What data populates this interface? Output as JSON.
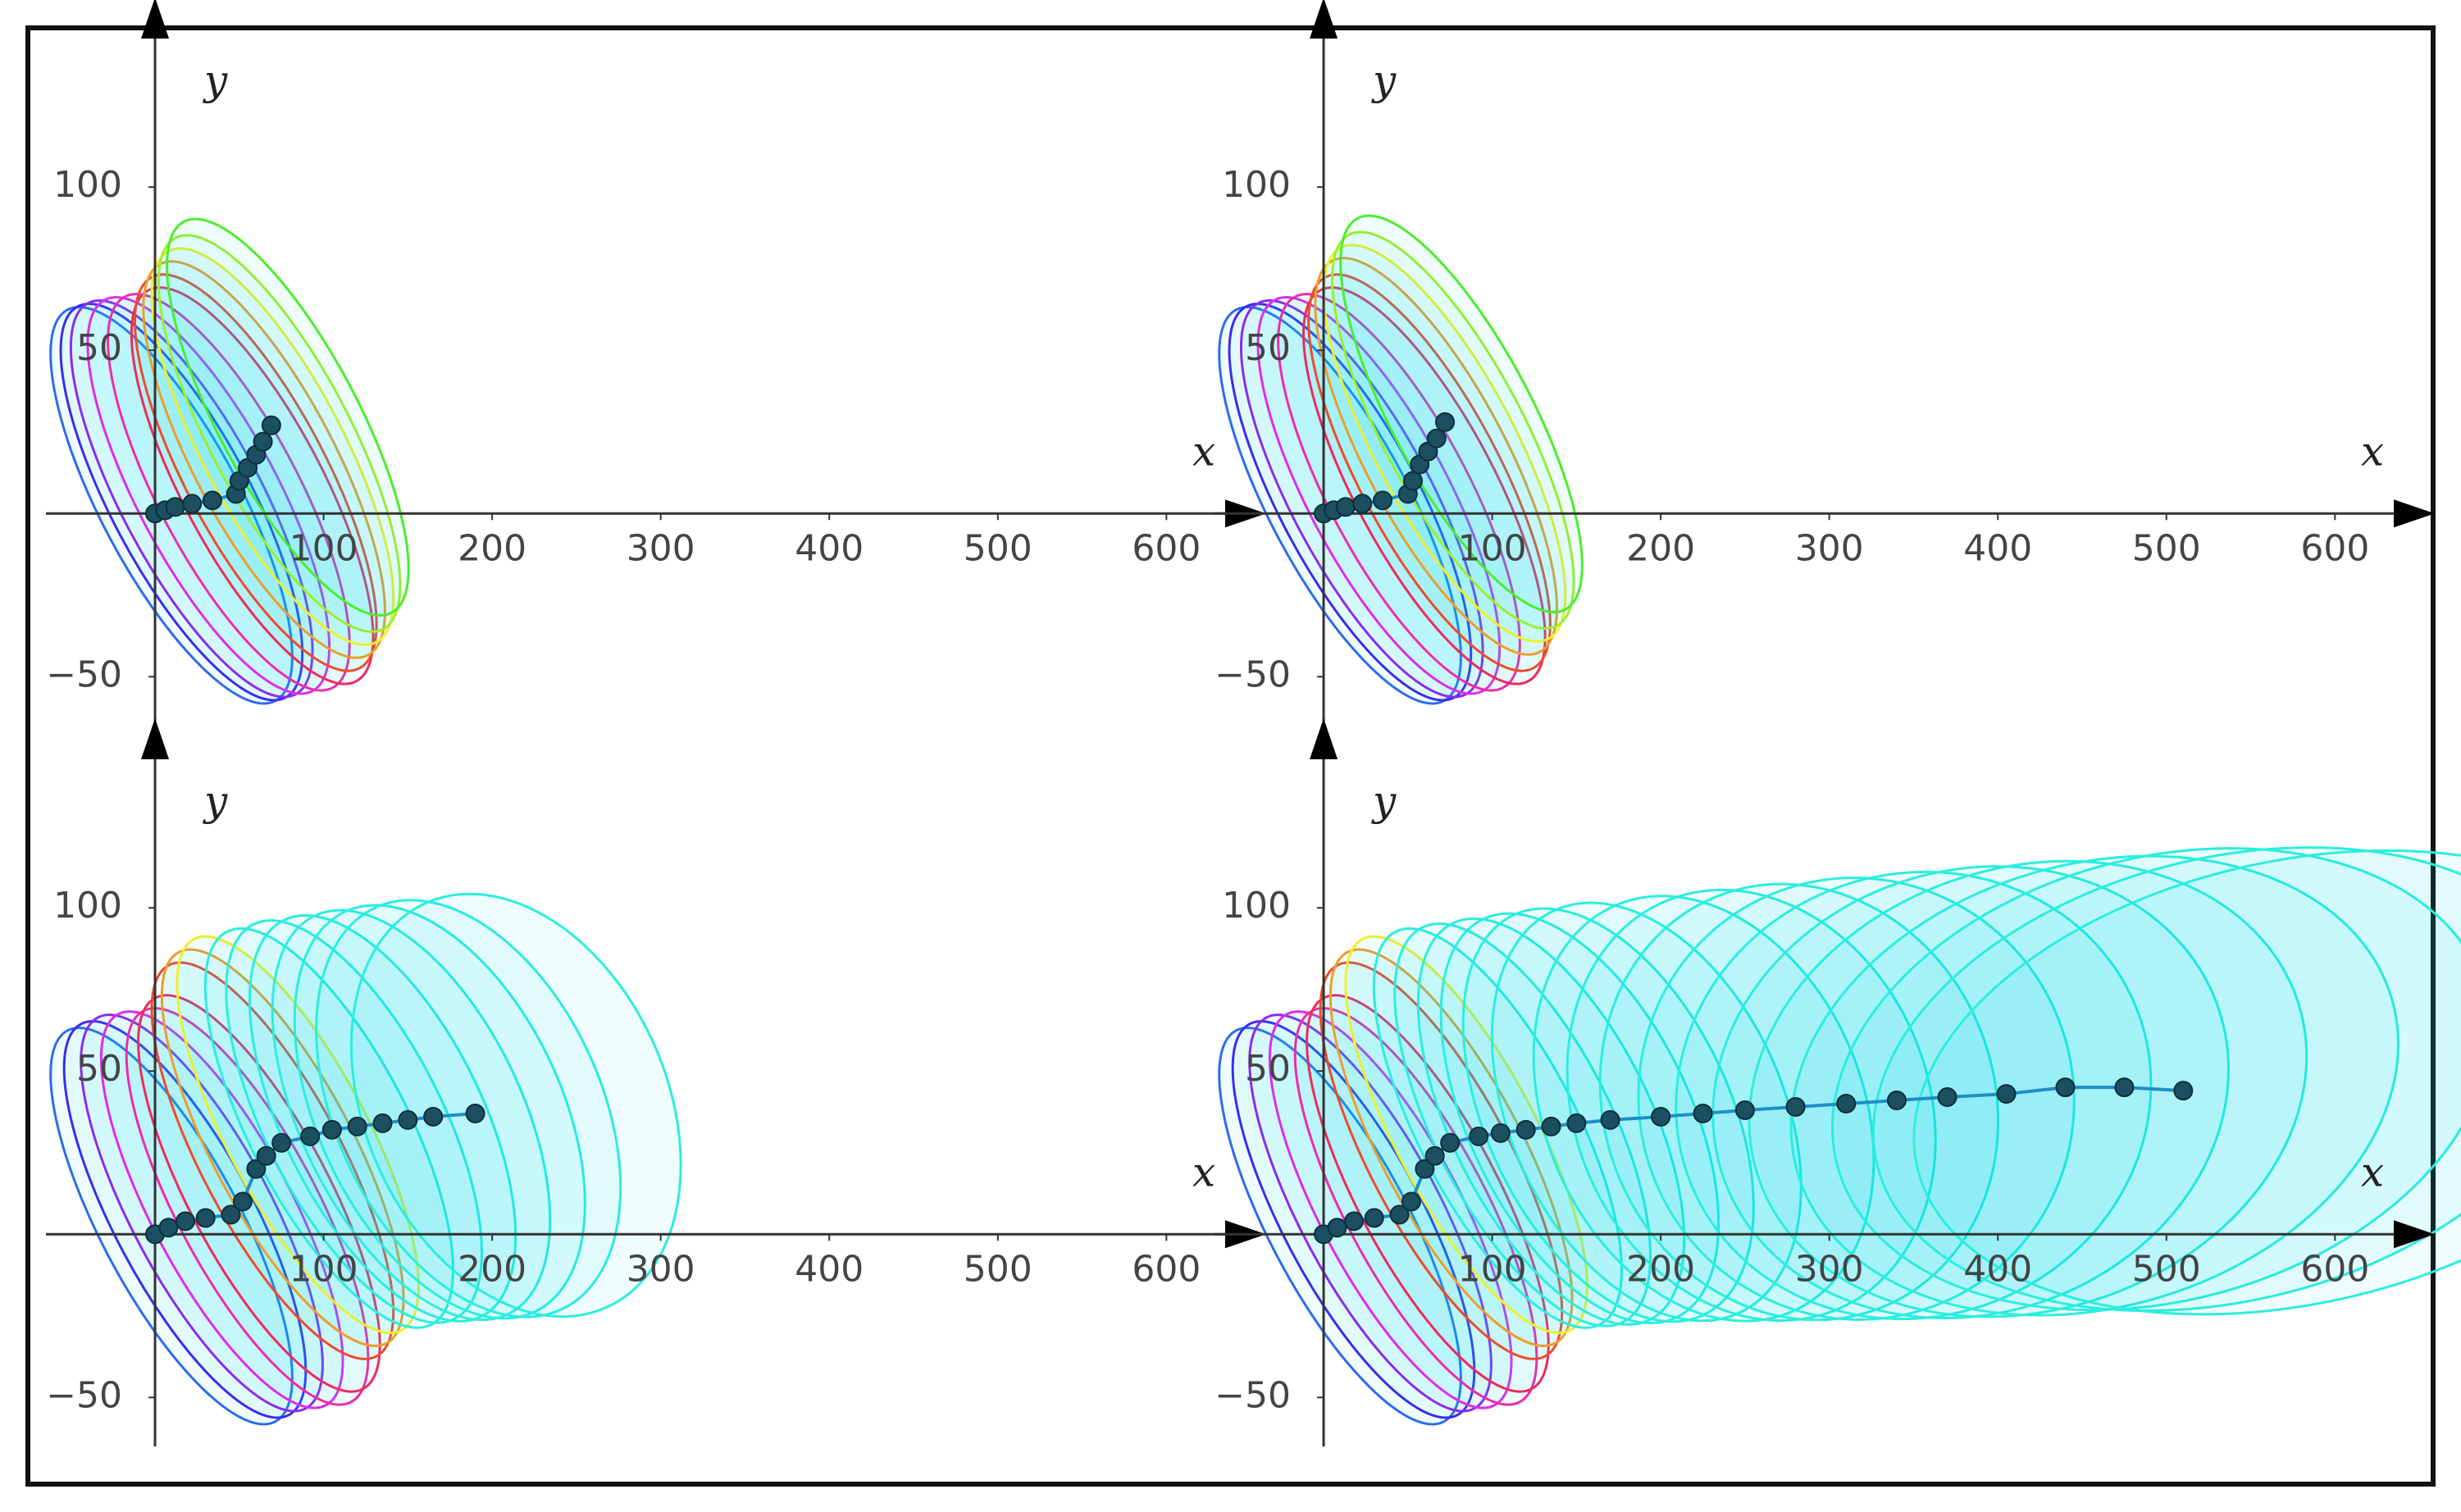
{
  "chart_data": [
    {
      "type": "line",
      "x_label": "x",
      "y_label": "y",
      "xlim": [
        -55,
        630
      ],
      "ylim": [
        -65,
        143
      ],
      "xticks": [
        100,
        200,
        300,
        400,
        500,
        600
      ],
      "yticks": [
        {
          "value": -50,
          "label": "−50"
        },
        50,
        100
      ],
      "series": [
        {
          "color": "#1c4f60",
          "x": [
            0,
            6,
            12,
            22,
            34,
            48,
            50,
            55,
            60,
            64,
            69
          ],
          "values": [
            0,
            1,
            2,
            3,
            4,
            6,
            10,
            14,
            18,
            22,
            27
          ]
        }
      ]
    },
    {
      "type": "line",
      "x_label": "x",
      "y_label": "y",
      "xlim": [
        -55,
        630
      ],
      "ylim": [
        -65,
        143
      ],
      "xticks": [
        100,
        200,
        300,
        400,
        500,
        600
      ],
      "yticks": [
        {
          "value": -50,
          "label": "−50"
        },
        50,
        100
      ],
      "series": [
        {
          "color": "#1c4f60",
          "x": [
            0,
            6,
            13,
            23,
            35,
            50,
            53,
            57,
            62,
            67,
            72
          ],
          "values": [
            0,
            1,
            2,
            3,
            4,
            6,
            10,
            15,
            19,
            23,
            28
          ]
        }
      ]
    },
    {
      "type": "line",
      "x_label": "x",
      "y_label": "y",
      "xlim": [
        -55,
        630
      ],
      "ylim": [
        -65,
        143
      ],
      "xticks": [
        100,
        200,
        300,
        400,
        500,
        600
      ],
      "yticks": [
        {
          "value": -50,
          "label": "−50"
        },
        50,
        100
      ],
      "series": [
        {
          "color": "#1c4f60",
          "x": [
            0,
            8,
            18,
            30,
            45,
            52,
            60,
            66,
            75,
            92,
            105,
            120,
            135,
            150,
            165,
            190
          ],
          "values": [
            0,
            2,
            4,
            5,
            6,
            10,
            20,
            24,
            28,
            30,
            32,
            33,
            34,
            35,
            36,
            37
          ]
        }
      ]
    },
    {
      "type": "line",
      "x_label": "x",
      "y_label": "y",
      "xlim": [
        -55,
        630
      ],
      "ylim": [
        -65,
        143
      ],
      "xticks": [
        100,
        200,
        300,
        400,
        500,
        600
      ],
      "yticks": [
        {
          "value": -50,
          "label": "−50"
        },
        50,
        100
      ],
      "series": [
        {
          "color": "#1c4f60",
          "x": [
            0,
            8,
            18,
            30,
            45,
            52,
            60,
            66,
            75,
            92,
            105,
            120,
            135,
            150,
            170,
            200,
            225,
            250,
            280,
            310,
            340,
            370,
            405,
            440,
            475,
            510
          ],
          "values": [
            0,
            2,
            4,
            5,
            6,
            10,
            20,
            24,
            28,
            30,
            31,
            32,
            33,
            34,
            35,
            36,
            37,
            38,
            39,
            40,
            41,
            42,
            43,
            45,
            45,
            44
          ]
        }
      ]
    }
  ]
}
